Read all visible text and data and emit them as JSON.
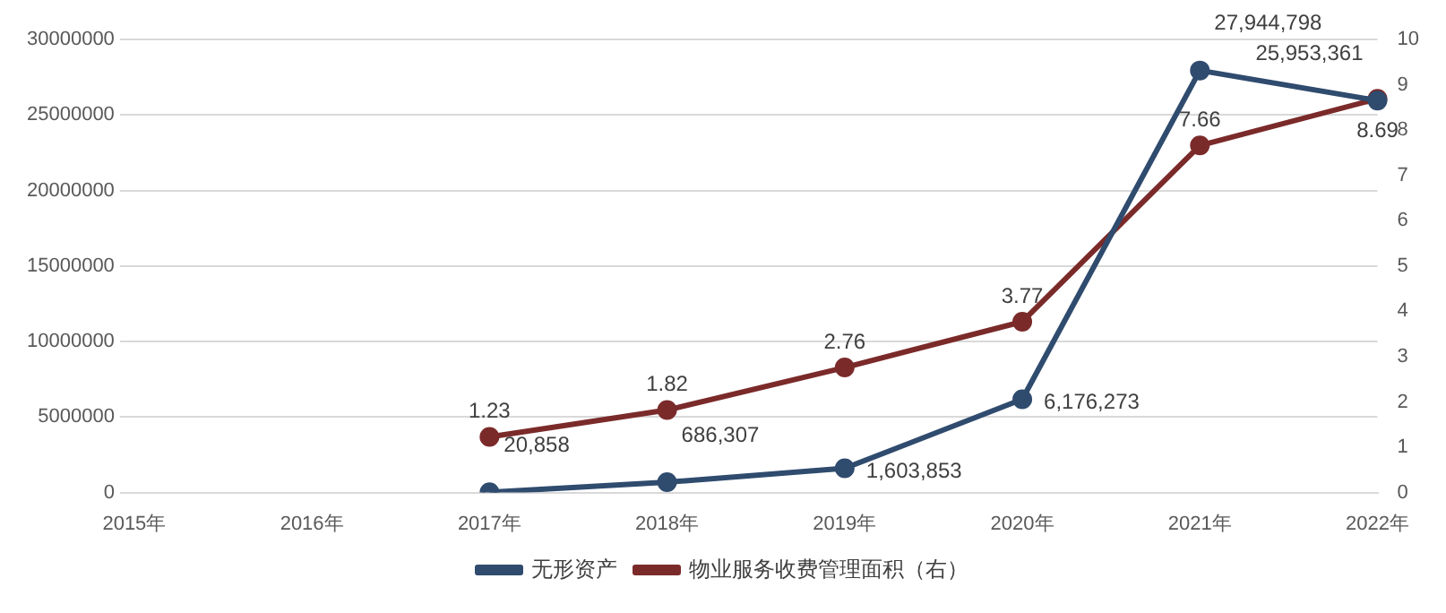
{
  "chart_data": {
    "type": "line",
    "categories": [
      "2015年",
      "2016年",
      "2017年",
      "2018年",
      "2019年",
      "2020年",
      "2021年",
      "2022年"
    ],
    "series": [
      {
        "name": "无形资产",
        "color": "#2f4b6e",
        "values": [
          null,
          null,
          20858,
          686307,
          1603853,
          6176273,
          27944798,
          25953361
        ],
        "value_labels": [
          null,
          null,
          "20,858",
          "686,307",
          "1,603,853",
          "6,176,273",
          "27,944,798",
          "25,953,361"
        ]
      },
      {
        "name": "物业服务收费管理面积（右）",
        "color": "#7b2a2a",
        "axis": "y2",
        "values": [
          null,
          null,
          1.23,
          1.82,
          2.76,
          3.77,
          7.66,
          8.69
        ],
        "value_labels": [
          null,
          null,
          "1.23",
          "1.82",
          "2.76",
          "3.77",
          "7.66",
          "8.69"
        ]
      }
    ],
    "ylim": [
      0,
      30000000
    ],
    "yticks": [
      0,
      5000000,
      10000000,
      15000000,
      20000000,
      25000000,
      30000000
    ],
    "y2lim": [
      0,
      10
    ],
    "y2ticks": [
      0,
      1,
      2,
      3,
      4,
      5,
      6,
      7,
      8,
      9,
      10
    ],
    "grid": "y",
    "legend": "bottom",
    "marker": "circle",
    "line_style": "solid"
  }
}
